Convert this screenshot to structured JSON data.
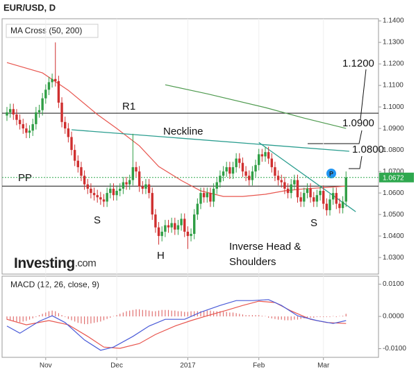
{
  "chart_data": {
    "type": "candlestick",
    "title": "EUR/USD, D",
    "panel_label": "MA Cross (50, 200)",
    "watermark": [
      "Investing",
      ".com"
    ],
    "categories": [
      null,
      null,
      null,
      null,
      null,
      null,
      null,
      null,
      null,
      null,
      null,
      null,
      "Nov",
      null,
      null,
      null,
      null,
      null,
      null,
      null,
      null,
      null,
      null,
      null,
      null,
      null,
      null,
      null,
      null,
      null,
      null,
      null,
      null,
      null,
      "Dec",
      null,
      null,
      null,
      null,
      null,
      null,
      null,
      null,
      null,
      null,
      null,
      null,
      null,
      null,
      null,
      null,
      null,
      null,
      null,
      null,
      null,
      "2017",
      null,
      null,
      null,
      null,
      null,
      null,
      null,
      null,
      null,
      null,
      null,
      null,
      null,
      null,
      null,
      null,
      null,
      null,
      null,
      null,
      null,
      "Feb",
      null,
      null,
      null,
      null,
      null,
      null,
      null,
      null,
      null,
      null,
      null,
      null,
      null,
      null,
      null,
      null,
      null,
      null,
      null,
      "Mar",
      null,
      null,
      null,
      null,
      null,
      null,
      null
    ],
    "open": [
      1.096,
      1.0975,
      1.099,
      1.0965,
      1.094,
      1.092,
      1.09,
      1.088,
      1.089,
      1.092,
      1.0975,
      1.0985,
      1.104,
      1.108,
      1.1115,
      1.113,
      1.112,
      1.102,
      1.093,
      1.09,
      1.086,
      1.08,
      1.075,
      1.072,
      1.068,
      1.064,
      1.062,
      1.06,
      1.059,
      1.058,
      1.057,
      1.056,
      1.06,
      1.062,
      1.059,
      1.061,
      1.062,
      1.065,
      1.064,
      1.066,
      1.072,
      1.07,
      1.063,
      1.062,
      1.064,
      1.06,
      1.05,
      1.044,
      1.04,
      1.042,
      1.045,
      1.044,
      1.046,
      1.043,
      1.045,
      1.048,
      1.042,
      1.04,
      1.041,
      1.05,
      1.055,
      1.06,
      1.058,
      1.06,
      1.056,
      1.062,
      1.065,
      1.068,
      1.07,
      1.072,
      1.069,
      1.072,
      1.076,
      1.074,
      1.07,
      1.068,
      1.066,
      1.07,
      1.073,
      1.078,
      1.077,
      1.079,
      1.076,
      1.072,
      1.068,
      1.066,
      1.065,
      1.062,
      1.06,
      1.064,
      1.066,
      1.058,
      1.056,
      1.06,
      1.062,
      1.058,
      1.056,
      1.059,
      1.061,
      1.055,
      1.052,
      1.057,
      1.06,
      1.055,
      1.053,
      1.056
    ],
    "high": [
      1.1,
      1.1015,
      1.1015,
      1.099,
      1.0965,
      1.0945,
      1.0925,
      1.0915,
      1.0945,
      1.1,
      1.101,
      1.1065,
      1.1105,
      1.114,
      1.1155,
      1.13,
      1.1145,
      1.1045,
      1.0955,
      1.0925,
      1.0885,
      1.0825,
      1.0775,
      1.0745,
      1.0705,
      1.0665,
      1.0645,
      1.0625,
      1.0615,
      1.0605,
      1.0595,
      1.0625,
      1.0645,
      1.0645,
      1.0635,
      1.0645,
      1.0675,
      1.0675,
      1.0685,
      1.0875,
      1.0745,
      1.0725,
      1.0655,
      1.0665,
      1.0665,
      1.0625,
      1.0525,
      1.0465,
      1.0445,
      1.0475,
      1.0475,
      1.0485,
      1.0485,
      1.0475,
      1.0505,
      1.0505,
      1.0445,
      1.0435,
      1.0525,
      1.0575,
      1.0625,
      1.0625,
      1.0625,
      1.0625,
      1.0645,
      1.0675,
      1.0705,
      1.0725,
      1.0745,
      1.0745,
      1.0745,
      1.0785,
      1.0785,
      1.0765,
      1.0725,
      1.0705,
      1.0725,
      1.0755,
      1.0805,
      1.0805,
      1.0815,
      1.0815,
      1.0785,
      1.0745,
      1.0705,
      1.0685,
      1.0675,
      1.0645,
      1.0665,
      1.0685,
      1.0685,
      1.0605,
      1.0625,
      1.0645,
      1.0645,
      1.0605,
      1.0615,
      1.0635,
      1.0635,
      1.0575,
      1.0595,
      1.0625,
      1.0625,
      1.0575,
      1.0585,
      1.07
    ],
    "low": [
      1.0935,
      1.095,
      1.094,
      1.0915,
      1.0895,
      1.0875,
      1.0855,
      1.0855,
      1.0865,
      1.0895,
      1.095,
      1.096,
      1.1015,
      1.1055,
      1.109,
      1.1095,
      1.0995,
      1.0905,
      1.0875,
      1.0835,
      1.0775,
      1.0725,
      1.0695,
      1.0655,
      1.0615,
      1.0595,
      1.0575,
      1.0565,
      1.0555,
      1.0545,
      1.0535,
      1.0535,
      1.0575,
      1.0565,
      1.0565,
      1.0585,
      1.0595,
      1.0615,
      1.0615,
      1.0635,
      1.0675,
      1.0605,
      1.0595,
      1.0595,
      1.0575,
      1.0475,
      1.0415,
      1.036,
      1.0375,
      1.0395,
      1.0415,
      1.0415,
      1.0405,
      1.0405,
      1.0425,
      1.0395,
      1.034,
      1.0375,
      1.0385,
      1.0475,
      1.0525,
      1.0555,
      1.0555,
      1.0535,
      1.0535,
      1.0595,
      1.0625,
      1.0655,
      1.0675,
      1.0665,
      1.0665,
      1.0695,
      1.0715,
      1.0675,
      1.0655,
      1.0635,
      1.0635,
      1.0675,
      1.0705,
      1.0745,
      1.0745,
      1.0735,
      1.0695,
      1.0655,
      1.0635,
      1.0625,
      1.0595,
      1.0575,
      1.0575,
      1.0615,
      1.0555,
      1.0535,
      1.0535,
      1.0575,
      1.0555,
      1.0535,
      1.0535,
      1.0565,
      1.0525,
      1.0495,
      1.0495,
      1.0545,
      1.0525,
      1.0505,
      1.0505,
      1.0535
    ],
    "close": [
      1.0975,
      1.099,
      1.0965,
      1.094,
      1.092,
      1.09,
      1.088,
      1.089,
      1.092,
      1.0975,
      1.0985,
      1.104,
      1.108,
      1.1115,
      1.113,
      1.112,
      1.102,
      1.093,
      1.09,
      1.086,
      1.08,
      1.075,
      1.072,
      1.068,
      1.064,
      1.062,
      1.06,
      1.059,
      1.058,
      1.057,
      1.056,
      1.06,
      1.062,
      1.059,
      1.061,
      1.062,
      1.065,
      1.064,
      1.066,
      1.072,
      1.07,
      1.063,
      1.062,
      1.064,
      1.06,
      1.05,
      1.044,
      1.04,
      1.042,
      1.045,
      1.044,
      1.046,
      1.043,
      1.045,
      1.048,
      1.042,
      1.04,
      1.041,
      1.05,
      1.055,
      1.06,
      1.058,
      1.06,
      1.056,
      1.062,
      1.065,
      1.068,
      1.07,
      1.072,
      1.069,
      1.072,
      1.076,
      1.074,
      1.07,
      1.068,
      1.066,
      1.07,
      1.073,
      1.078,
      1.077,
      1.079,
      1.076,
      1.072,
      1.068,
      1.066,
      1.065,
      1.062,
      1.06,
      1.064,
      1.066,
      1.058,
      1.056,
      1.06,
      1.062,
      1.058,
      1.056,
      1.059,
      1.061,
      1.055,
      1.052,
      1.057,
      1.06,
      1.055,
      1.053,
      1.056,
      1.0672
    ],
    "up_color": "#2f9e45",
    "down_color": "#cf2f2f",
    "ylim": [
      1.0223,
      1.141
    ],
    "yticks": [
      {
        "value": 1.14,
        "label": "1.1400"
      },
      {
        "value": 1.13,
        "label": "1.1300"
      },
      {
        "value": 1.12,
        "label": "1.1200"
      },
      {
        "value": 1.11,
        "label": "1.1100"
      },
      {
        "value": 1.1,
        "label": "1.1000"
      },
      {
        "value": 1.09,
        "label": "1.0900"
      },
      {
        "value": 1.08,
        "label": "1.0800"
      },
      {
        "value": 1.07,
        "label": "1.0700"
      },
      {
        "value": 1.06,
        "label": "1.0600"
      },
      {
        "value": 1.05,
        "label": "1.0500"
      },
      {
        "value": 1.04,
        "label": "1.0400"
      },
      {
        "value": 1.03,
        "label": "1.0300"
      }
    ],
    "moving_averages": [
      {
        "color": "#e8554e",
        "x": [
          0,
          11,
          19,
          28,
          34,
          41,
          47,
          54,
          60,
          67,
          73,
          80,
          86,
          92,
          99,
          105
        ],
        "values": [
          1.1206,
          1.1158,
          1.1077,
          1.0965,
          1.09,
          1.0819,
          1.0723,
          1.0658,
          1.061,
          1.0584,
          1.0584,
          1.0594,
          1.061,
          1.0619,
          1.0626,
          1.0632
        ]
      },
      {
        "color": "#4e9a4e",
        "x": [
          49,
          62,
          80,
          92,
          105
        ],
        "values": [
          1.1103,
          1.1061,
          1.0997,
          1.0948,
          1.09
        ]
      }
    ],
    "levels": [
      {
        "label": "R1",
        "value": 1.0971
      },
      {
        "label": "PP",
        "value": 1.0632
      }
    ],
    "last_price": {
      "value": 1.0672,
      "label": "1.0672",
      "color": "#2fa84f"
    },
    "neckline": {
      "label": "Neckline",
      "color": "#2a9d8f",
      "x": [
        20,
        106
      ],
      "values": [
        1.0894,
        1.0794
      ]
    },
    "trendline": {
      "color": "#2a9d8f",
      "x": [
        78,
        108
      ],
      "values": [
        1.0835,
        1.0513
      ]
    },
    "annotations": [
      "S",
      "H",
      "S",
      "Inverse Head &",
      "Shoulders"
    ],
    "targets": [
      "1.1200",
      "1.0900",
      "1.0800"
    ],
    "macd": {
      "label": "MACD (12, 26, close, 9)",
      "ylim": [
        -0.01269,
        0.01247
      ],
      "yticks": [
        {
          "value": 0.01,
          "label": "0.0100"
        },
        {
          "value": 0,
          "label": "0.0000"
        },
        {
          "value": -0.01,
          "label": "-0.0100"
        }
      ],
      "macd_line": {
        "color": "#4a5bd8",
        "x": [
          0,
          4,
          10,
          14,
          18,
          24,
          29,
          33,
          39,
          44,
          49,
          55,
          60,
          66,
          71,
          76,
          81,
          85,
          90,
          96,
          101,
          105
        ],
        "values": [
          -0.003,
          -0.0052,
          -0.0015,
          0.0002,
          -0.0019,
          -0.0073,
          -0.0105,
          -0.0095,
          -0.0062,
          -0.003,
          -0.0009,
          -0.0009,
          0.0013,
          0.0034,
          0.0049,
          0.0049,
          0.0052,
          0.0034,
          0.0002,
          -0.0013,
          -0.0022,
          -0.0013
        ]
      },
      "signal_line": {
        "color": "#e8554e",
        "x": [
          0,
          6,
          13,
          19,
          25,
          30,
          35,
          41,
          46,
          52,
          57,
          62,
          68,
          73,
          78,
          83,
          88,
          94,
          99,
          105
        ],
        "values": [
          -0.0009,
          -0.0026,
          -0.0013,
          -0.0026,
          -0.0062,
          -0.0095,
          -0.0099,
          -0.0084,
          -0.0056,
          -0.003,
          -0.0013,
          0.0002,
          0.0019,
          0.0034,
          0.0047,
          0.0043,
          0.0017,
          -0.0009,
          -0.0019,
          -0.0022
        ]
      },
      "histogram_color": "#e07070",
      "histogram": [
        -0.001,
        -0.0012,
        -0.0014,
        -0.0016,
        -0.0018,
        -0.0016,
        -0.0014,
        -0.001,
        -0.0006,
        -0.0002,
        0.0004,
        0.0008,
        0.0012,
        0.0016,
        0.0018,
        0.0016,
        0.001,
        0.0004,
        -0.0002,
        -0.0008,
        -0.0012,
        -0.0016,
        -0.002,
        -0.0022,
        -0.0024,
        -0.0024,
        -0.0022,
        -0.002,
        -0.0018,
        -0.0016,
        -0.0012,
        -0.0008,
        -0.0004,
        0.0,
        0.0004,
        0.0008,
        0.0012,
        0.0016,
        0.0018,
        0.002,
        0.0022,
        0.0022,
        0.002,
        0.002,
        0.0018,
        0.0016,
        0.0016,
        0.0018,
        0.002,
        0.002,
        0.002,
        0.0018,
        0.0018,
        0.0016,
        0.0016,
        0.0014,
        0.0014,
        0.0016,
        0.0016,
        0.0016,
        0.0016,
        0.0016,
        0.0018,
        0.0018,
        0.0016,
        0.0016,
        0.0016,
        0.0014,
        0.0014,
        0.0012,
        0.0012,
        0.001,
        0.0008,
        0.0006,
        0.0004,
        0.0004,
        0.0004,
        0.0004,
        0.0004,
        0.0002,
        0.0,
        -0.0004,
        -0.0006,
        -0.0008,
        -0.001,
        -0.001,
        -0.0012,
        -0.0012,
        -0.0012,
        -0.001,
        -0.001,
        -0.0008,
        -0.0006,
        -0.0006,
        -0.0004,
        -0.0004,
        -0.0002,
        -0.0002,
        -0.0002,
        -0.0002,
        -0.0002,
        0.0,
        -0.0002,
        0.0,
        0.0002,
        0.0008
      ]
    }
  }
}
